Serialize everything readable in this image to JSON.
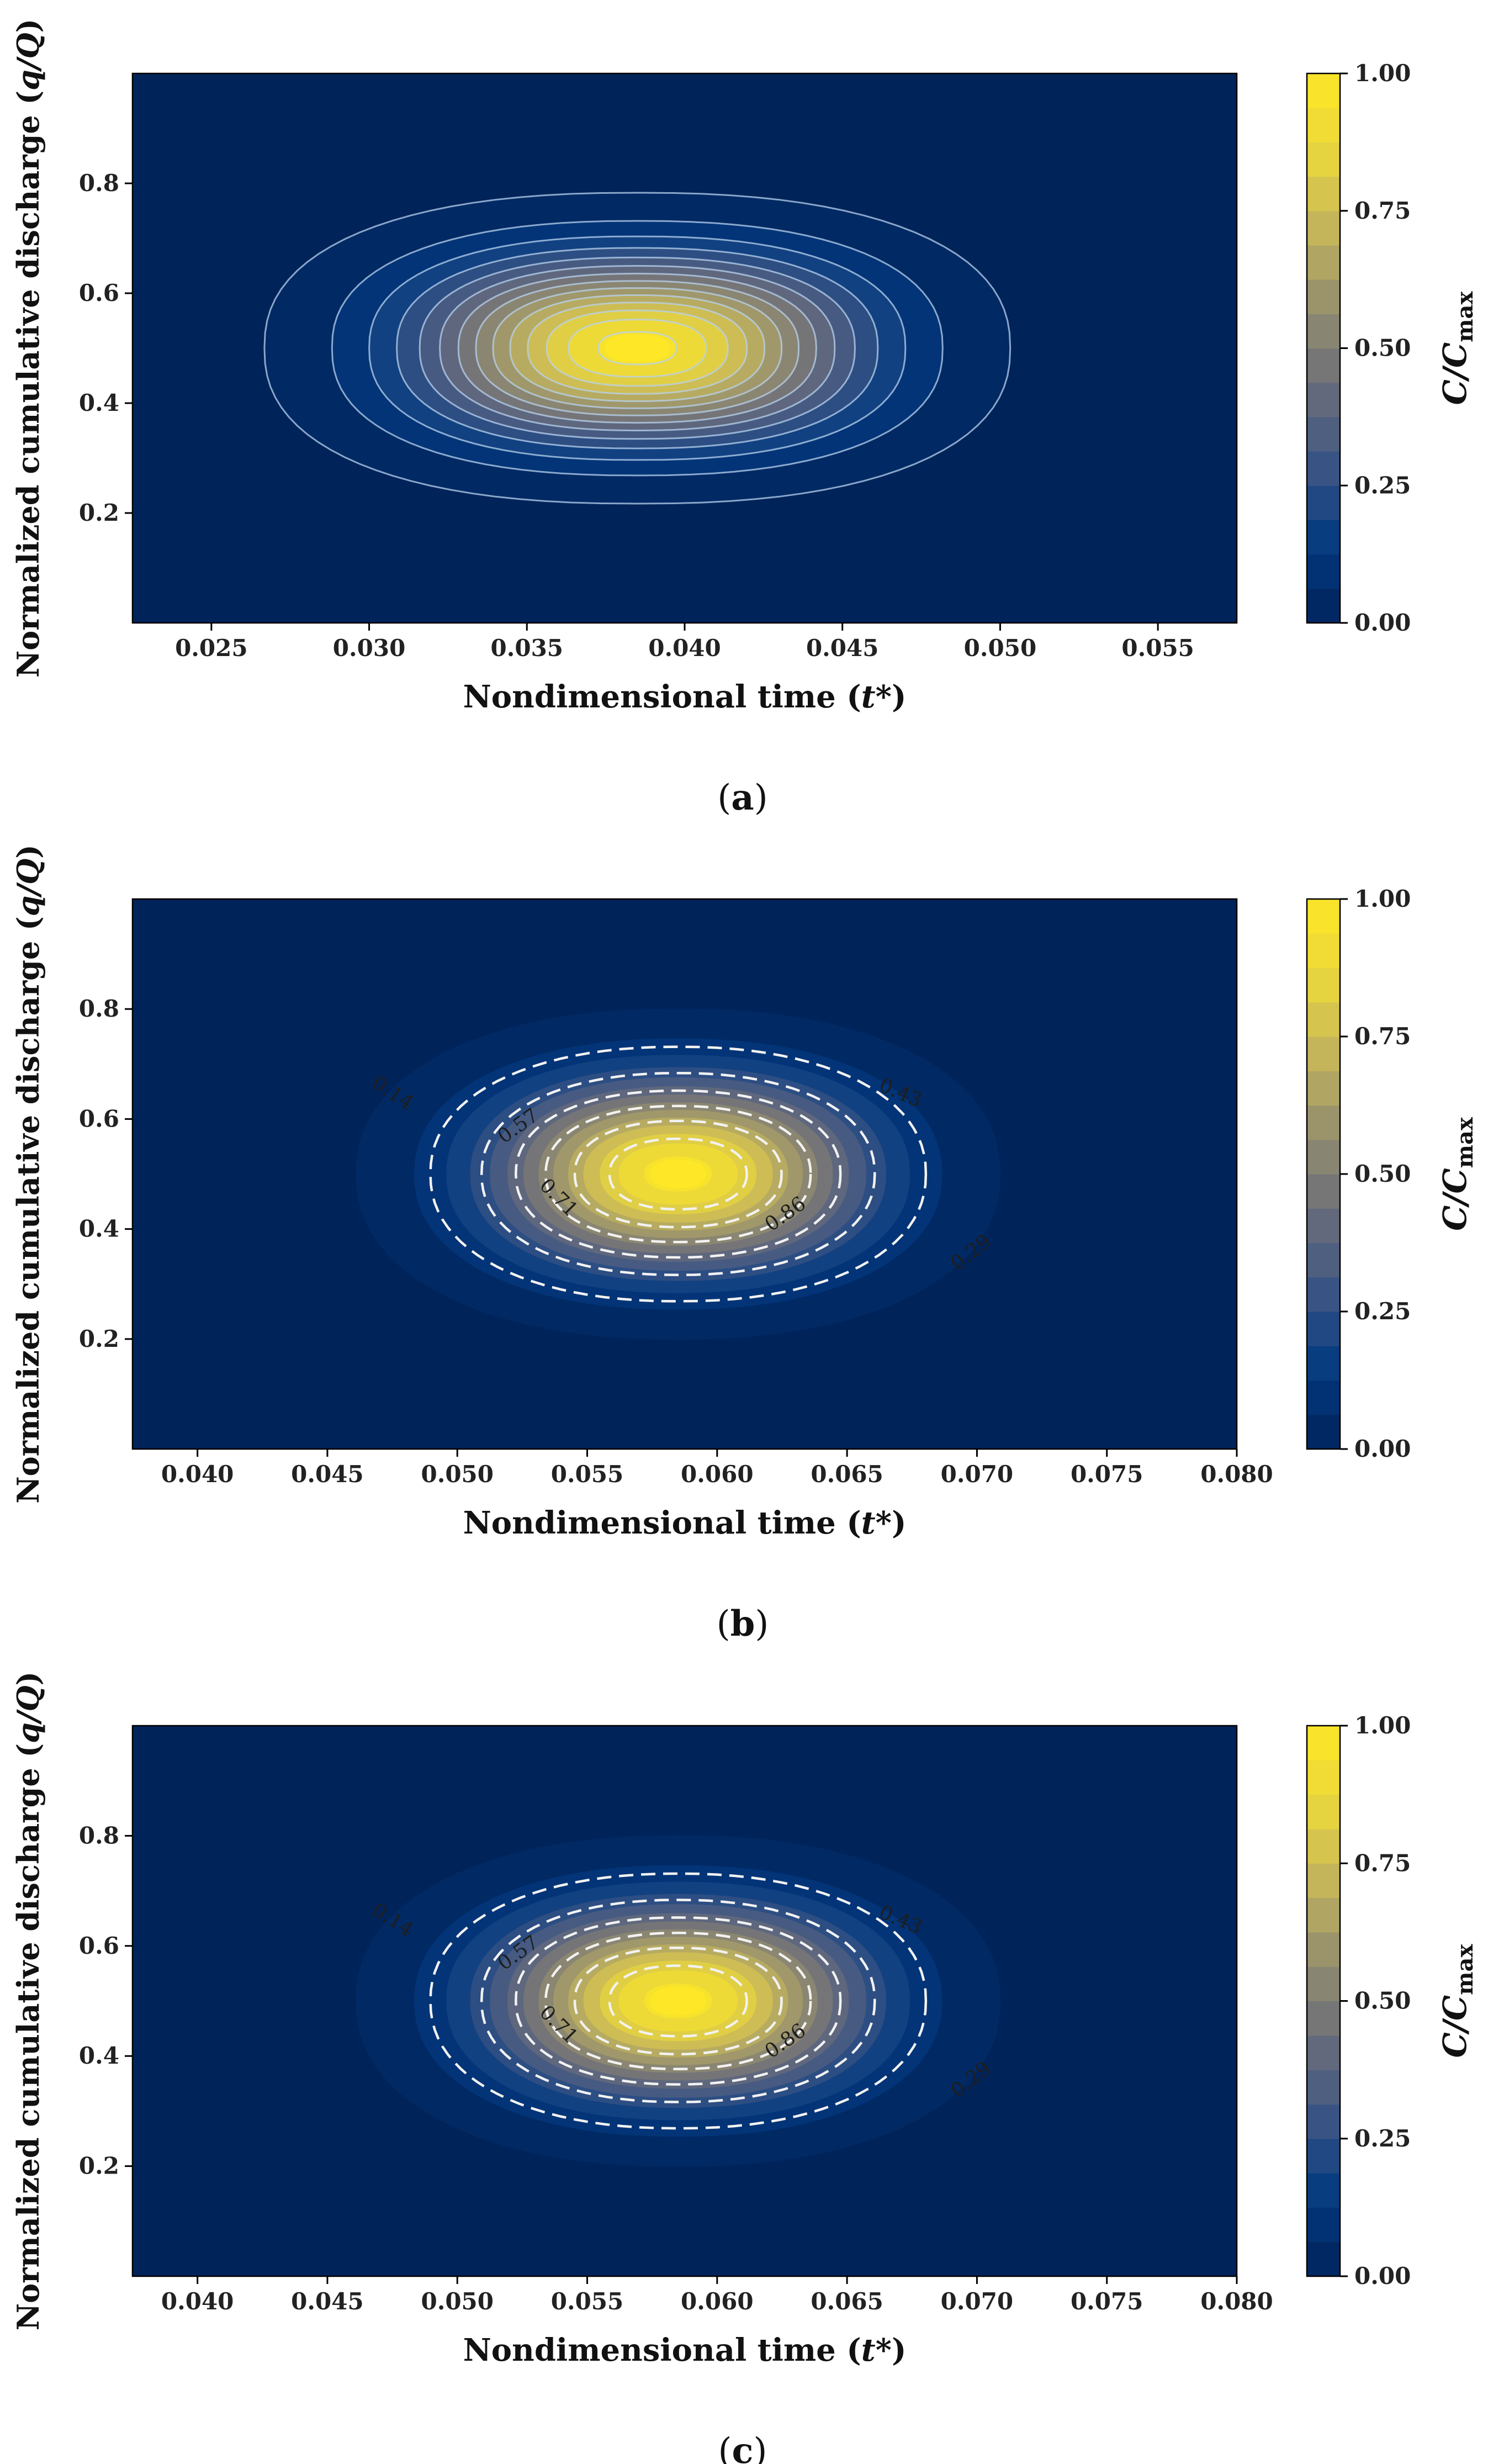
{
  "colors": {
    "background": "#00235a",
    "colormap": [
      "#00235a",
      "#033a80",
      "#3b5584",
      "#6a6d7b",
      "#948e6e",
      "#c3b45c",
      "#e9d63d",
      "#fde726"
    ],
    "iso_line": "#b8d2ee",
    "dashed_line": "#f2f2f2"
  },
  "colorbar": {
    "label_main": "C/C",
    "label_sub": "max",
    "ticks": [
      "1.00",
      "0.75",
      "0.50",
      "0.25",
      "0.00"
    ]
  },
  "panels": [
    {
      "caption_open": "(",
      "caption_letter": "a",
      "caption_close": ")",
      "xlabel_main": "Nondimensional time (",
      "xlabel_var": "t",
      "xlabel_end": "*)",
      "ylabel_main": "Normalized cumulative discharge (",
      "ylabel_var": "q/Q",
      "ylabel_end": ")",
      "xtick_labels": [
        "0.025",
        "0.030",
        "0.035",
        "0.040",
        "0.045",
        "0.050",
        "0.055"
      ],
      "ytick_labels": [
        "0.2",
        "0.4",
        "0.6",
        "0.8"
      ],
      "contour_labels": []
    },
    {
      "caption_open": "(",
      "caption_letter": "b",
      "caption_close": ")",
      "xlabel_main": "Nondimensional time (",
      "xlabel_var": "t",
      "xlabel_end": "*)",
      "ylabel_main": "Normalized cumulative discharge (",
      "ylabel_var": "q/Q",
      "ylabel_end": ")",
      "xtick_labels": [
        "0.040",
        "0.045",
        "0.050",
        "0.055",
        "0.060",
        "0.065",
        "0.070",
        "0.075",
        "0.080"
      ],
      "ytick_labels": [
        "0.2",
        "0.4",
        "0.6",
        "0.8"
      ],
      "contour_labels": [
        "0.14",
        "0.57",
        "0.43",
        "0.71",
        "0.86",
        "0.29"
      ]
    },
    {
      "caption_open": "(",
      "caption_letter": "c",
      "caption_close": ")",
      "xlabel_main": "Nondimensional time (",
      "xlabel_var": "t",
      "xlabel_end": "*)",
      "ylabel_main": "Normalized cumulative discharge (",
      "ylabel_var": "q/Q",
      "ylabel_end": ")",
      "xtick_labels": [
        "0.040",
        "0.045",
        "0.050",
        "0.055",
        "0.060",
        "0.065",
        "0.070",
        "0.075",
        "0.080"
      ],
      "ytick_labels": [
        "0.2",
        "0.4",
        "0.6",
        "0.8"
      ],
      "contour_labels": [
        "0.14",
        "0.57",
        "0.43",
        "0.71",
        "0.86",
        "0.29"
      ]
    }
  ],
  "chart_data": [
    {
      "type": "heatmap",
      "subtype": "filled-contour",
      "title": "(a)",
      "xlabel": "Nondimensional time (t*)",
      "ylabel": "Normalized cumulative discharge (q/Q)",
      "colorbar_label": "C/Cmax",
      "xlim": [
        0.0225,
        0.0575
      ],
      "ylim": [
        0.0,
        1.0
      ],
      "xticks": [
        0.025,
        0.03,
        0.035,
        0.04,
        0.045,
        0.05,
        0.055
      ],
      "yticks": [
        0.2,
        0.4,
        0.6,
        0.8
      ],
      "colorbar_range": [
        0.0,
        1.0
      ],
      "colorbar_ticks": [
        0.0,
        0.25,
        0.5,
        0.75,
        1.0
      ],
      "peak": {
        "t": 0.0385,
        "q": 0.5,
        "value": 1.0
      },
      "level_step": 0.0714,
      "contour_labels": []
    },
    {
      "type": "heatmap",
      "subtype": "filled-contour",
      "title": "(b)",
      "xlabel": "Nondimensional time (t*)",
      "ylabel": "Normalized cumulative discharge (q/Q)",
      "colorbar_label": "C/Cmax",
      "xlim": [
        0.0375,
        0.08
      ],
      "ylim": [
        0.0,
        1.0
      ],
      "xticks": [
        0.04,
        0.045,
        0.05,
        0.055,
        0.06,
        0.065,
        0.07,
        0.075,
        0.08
      ],
      "yticks": [
        0.2,
        0.4,
        0.6,
        0.8
      ],
      "colorbar_range": [
        0.0,
        1.0
      ],
      "colorbar_ticks": [
        0.0,
        0.25,
        0.5,
        0.75,
        1.0
      ],
      "peak": {
        "t": 0.0585,
        "q": 0.5,
        "value": 1.0
      },
      "level_step": 0.0714,
      "dashed_contours": [
        0.14,
        0.29,
        0.43,
        0.57,
        0.71,
        0.86
      ],
      "contour_labels": [
        0.14,
        0.57,
        0.43,
        0.71,
        0.86,
        0.29
      ]
    },
    {
      "type": "heatmap",
      "subtype": "filled-contour",
      "title": "(c)",
      "xlabel": "Nondimensional time (t*)",
      "ylabel": "Normalized cumulative discharge (q/Q)",
      "colorbar_label": "C/Cmax",
      "xlim": [
        0.0375,
        0.08
      ],
      "ylim": [
        0.0,
        1.0
      ],
      "xticks": [
        0.04,
        0.045,
        0.05,
        0.055,
        0.06,
        0.065,
        0.07,
        0.075,
        0.08
      ],
      "yticks": [
        0.2,
        0.4,
        0.6,
        0.8
      ],
      "colorbar_range": [
        0.0,
        1.0
      ],
      "colorbar_ticks": [
        0.0,
        0.25,
        0.5,
        0.75,
        1.0
      ],
      "peak": {
        "t": 0.0585,
        "q": 0.5,
        "value": 1.0
      },
      "level_step": 0.0714,
      "dashed_contours": [
        0.14,
        0.29,
        0.43,
        0.57,
        0.71,
        0.86
      ],
      "contour_labels": [
        0.14,
        0.57,
        0.43,
        0.71,
        0.86,
        0.29
      ]
    }
  ]
}
